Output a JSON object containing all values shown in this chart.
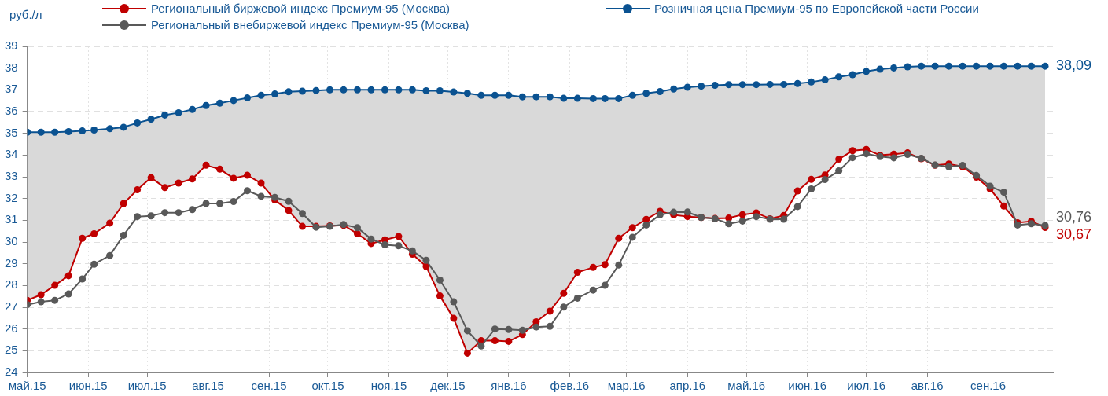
{
  "chart_data": {
    "type": "line",
    "ylabel": "руб./л",
    "legend": "top",
    "grid": true,
    "marker": "circle",
    "line_style": "solid",
    "x": [
      "2015-05-01",
      "2015-05-08",
      "2015-05-15",
      "2015-05-22",
      "2015-05-29",
      "2015-06-04",
      "2015-06-12",
      "2015-06-19",
      "2015-06-26",
      "2015-07-03",
      "2015-07-10",
      "2015-07-17",
      "2015-07-24",
      "2015-07-31",
      "2015-08-07",
      "2015-08-14",
      "2015-08-21",
      "2015-08-28",
      "2015-09-04",
      "2015-09-11",
      "2015-09-18",
      "2015-09-25",
      "2015-10-02",
      "2015-10-09",
      "2015-10-16",
      "2015-10-23",
      "2015-10-30",
      "2015-11-06",
      "2015-11-13",
      "2015-11-20",
      "2015-11-27",
      "2015-12-04",
      "2015-12-11",
      "2015-12-18",
      "2015-12-25",
      "2016-01-01",
      "2016-01-08",
      "2016-01-15",
      "2016-01-22",
      "2016-01-29",
      "2016-02-05",
      "2016-02-13",
      "2016-02-19",
      "2016-02-26",
      "2016-03-04",
      "2016-03-11",
      "2016-03-18",
      "2016-03-25",
      "2016-04-01",
      "2016-04-08",
      "2016-04-15",
      "2016-04-22",
      "2016-04-29",
      "2016-05-06",
      "2016-05-13",
      "2016-05-20",
      "2016-05-27",
      "2016-06-03",
      "2016-06-10",
      "2016-06-17",
      "2016-06-24",
      "2016-07-01",
      "2016-07-08",
      "2016-07-15",
      "2016-07-22",
      "2016-07-29",
      "2016-08-05",
      "2016-08-12",
      "2016-08-19",
      "2016-08-26",
      "2016-09-02",
      "2016-09-09",
      "2016-09-16",
      "2016-09-23",
      "2016-09-30"
    ],
    "xlim": [
      "2015-05-01",
      "2016-10-04"
    ],
    "xticks": [
      {
        "value": "2015-05-01",
        "label": "май.15"
      },
      {
        "value": "2015-06-01",
        "label": "июн.15"
      },
      {
        "value": "2015-07-01",
        "label": "июл.15"
      },
      {
        "value": "2015-08-01",
        "label": "авг.15"
      },
      {
        "value": "2015-09-01",
        "label": "сен.15"
      },
      {
        "value": "2015-10-01",
        "label": "окт.15"
      },
      {
        "value": "2015-11-01",
        "label": "ноя.15"
      },
      {
        "value": "2015-12-01",
        "label": "дек.15"
      },
      {
        "value": "2016-01-01",
        "label": "янв.16"
      },
      {
        "value": "2016-02-01",
        "label": "фев.16"
      },
      {
        "value": "2016-03-01",
        "label": "мар.16"
      },
      {
        "value": "2016-04-01",
        "label": "апр.16"
      },
      {
        "value": "2016-05-01",
        "label": "май.16"
      },
      {
        "value": "2016-06-01",
        "label": "июн.16"
      },
      {
        "value": "2016-07-01",
        "label": "июл.16"
      },
      {
        "value": "2016-08-01",
        "label": "авг.16"
      },
      {
        "value": "2016-09-01",
        "label": "сен.16"
      }
    ],
    "ylim": [
      24,
      39
    ],
    "yticks": [
      24,
      25,
      26,
      27,
      28,
      29,
      30,
      31,
      32,
      33,
      34,
      35,
      36,
      37,
      38,
      39
    ],
    "series": [
      {
        "name": "Розничная цена Премиум-95  по Европейской части России",
        "type": "area",
        "color": "#0a5291",
        "values": [
          35.05,
          35.05,
          35.05,
          35.08,
          35.11,
          35.15,
          35.21,
          35.28,
          35.48,
          35.65,
          35.84,
          35.95,
          36.1,
          36.28,
          36.39,
          36.51,
          36.63,
          36.75,
          36.81,
          36.91,
          36.94,
          36.97,
          37.0,
          37.0,
          37.0,
          37.0,
          37.0,
          37.0,
          37.0,
          36.96,
          36.96,
          36.9,
          36.84,
          36.75,
          36.75,
          36.75,
          36.68,
          36.68,
          36.68,
          36.61,
          36.61,
          36.6,
          36.6,
          36.6,
          36.75,
          36.84,
          36.92,
          37.04,
          37.12,
          37.17,
          37.21,
          37.24,
          37.24,
          37.24,
          37.25,
          37.25,
          37.29,
          37.36,
          37.46,
          37.6,
          37.7,
          37.85,
          37.95,
          38.01,
          38.06,
          38.09,
          38.09,
          38.09,
          38.09,
          38.09,
          38.09,
          38.09,
          38.09,
          38.09,
          38.09
        ],
        "value_labels": [
          null,
          null,
          null,
          null,
          null,
          null,
          null,
          null,
          null,
          null,
          null,
          null,
          null,
          null,
          null,
          null,
          null,
          null,
          null,
          null,
          null,
          null,
          null,
          null,
          null,
          null,
          null,
          null,
          null,
          null,
          null,
          null,
          null,
          null,
          null,
          null,
          null,
          null,
          null,
          null,
          null,
          null,
          null,
          null,
          null,
          null,
          null,
          null,
          null,
          null,
          null,
          null,
          null,
          null,
          null,
          null,
          null,
          null,
          null,
          null,
          null,
          null,
          null,
          null,
          null,
          null,
          null,
          null,
          null,
          null,
          null,
          null,
          null,
          null,
          "38,09"
        ]
      },
      {
        "name": "Региональный биржевой индекс Премиум-95 (Москва)",
        "color": "#c00000",
        "values": [
          27.32,
          27.58,
          28.01,
          28.45,
          30.17,
          30.38,
          30.87,
          31.77,
          32.4,
          32.96,
          32.5,
          32.71,
          32.9,
          33.53,
          33.35,
          32.93,
          33.07,
          32.71,
          31.93,
          31.45,
          30.72,
          30.72,
          30.74,
          30.77,
          30.38,
          29.93,
          30.1,
          30.26,
          29.44,
          28.88,
          27.52,
          26.49,
          24.89,
          25.46,
          25.46,
          25.43,
          25.74,
          26.33,
          26.82,
          27.64,
          28.61,
          28.83,
          28.96,
          30.17,
          30.66,
          31.04,
          31.41,
          31.25,
          31.17,
          31.13,
          31.08,
          31.1,
          31.26,
          31.34,
          31.07,
          31.22,
          32.35,
          32.88,
          33.08,
          33.81,
          34.2,
          34.26,
          33.99,
          34.04,
          34.1,
          33.83,
          33.53,
          33.59,
          33.47,
          32.98,
          32.44,
          31.65,
          30.89,
          30.95,
          30.67
        ],
        "value_labels": [
          null,
          null,
          null,
          null,
          null,
          null,
          null,
          null,
          null,
          null,
          null,
          null,
          null,
          null,
          null,
          null,
          null,
          null,
          null,
          null,
          null,
          null,
          null,
          null,
          null,
          null,
          null,
          null,
          null,
          null,
          null,
          null,
          null,
          null,
          null,
          null,
          null,
          null,
          null,
          null,
          null,
          null,
          null,
          null,
          null,
          null,
          null,
          null,
          null,
          null,
          null,
          null,
          null,
          null,
          null,
          null,
          null,
          null,
          null,
          null,
          null,
          null,
          null,
          null,
          null,
          null,
          null,
          null,
          null,
          null,
          null,
          null,
          null,
          null,
          "30,67"
        ]
      },
      {
        "name": "Региональный внебиржевой индекс Премиум-95 (Москва)",
        "color": "#595959",
        "values": [
          27.12,
          27.25,
          27.32,
          27.61,
          28.3,
          28.98,
          29.38,
          30.31,
          31.17,
          31.2,
          31.35,
          31.35,
          31.49,
          31.77,
          31.77,
          31.86,
          32.36,
          32.1,
          32.05,
          31.87,
          31.31,
          30.68,
          30.72,
          30.8,
          30.66,
          30.14,
          29.87,
          29.83,
          29.59,
          29.16,
          28.25,
          27.25,
          25.92,
          25.22,
          26.0,
          25.98,
          25.94,
          26.09,
          26.12,
          27.01,
          27.42,
          27.79,
          28.01,
          28.94,
          30.22,
          30.78,
          31.25,
          31.37,
          31.38,
          31.13,
          31.07,
          30.84,
          30.96,
          31.17,
          31.05,
          31.05,
          31.63,
          32.44,
          32.87,
          33.27,
          33.88,
          34.06,
          33.93,
          33.87,
          34.03,
          33.85,
          33.54,
          33.46,
          33.52,
          33.06,
          32.57,
          32.29,
          30.78,
          30.84,
          30.76
        ],
        "value_labels": [
          null,
          null,
          null,
          null,
          null,
          null,
          null,
          null,
          null,
          null,
          null,
          null,
          null,
          null,
          null,
          null,
          null,
          null,
          null,
          null,
          null,
          null,
          null,
          null,
          null,
          null,
          null,
          null,
          null,
          null,
          null,
          null,
          null,
          null,
          null,
          null,
          null,
          null,
          null,
          null,
          null,
          null,
          null,
          null,
          null,
          null,
          null,
          null,
          null,
          null,
          null,
          null,
          null,
          null,
          null,
          null,
          null,
          null,
          null,
          null,
          null,
          null,
          null,
          null,
          null,
          null,
          null,
          null,
          null,
          null,
          null,
          null,
          null,
          null,
          "30,76"
        ]
      }
    ]
  }
}
